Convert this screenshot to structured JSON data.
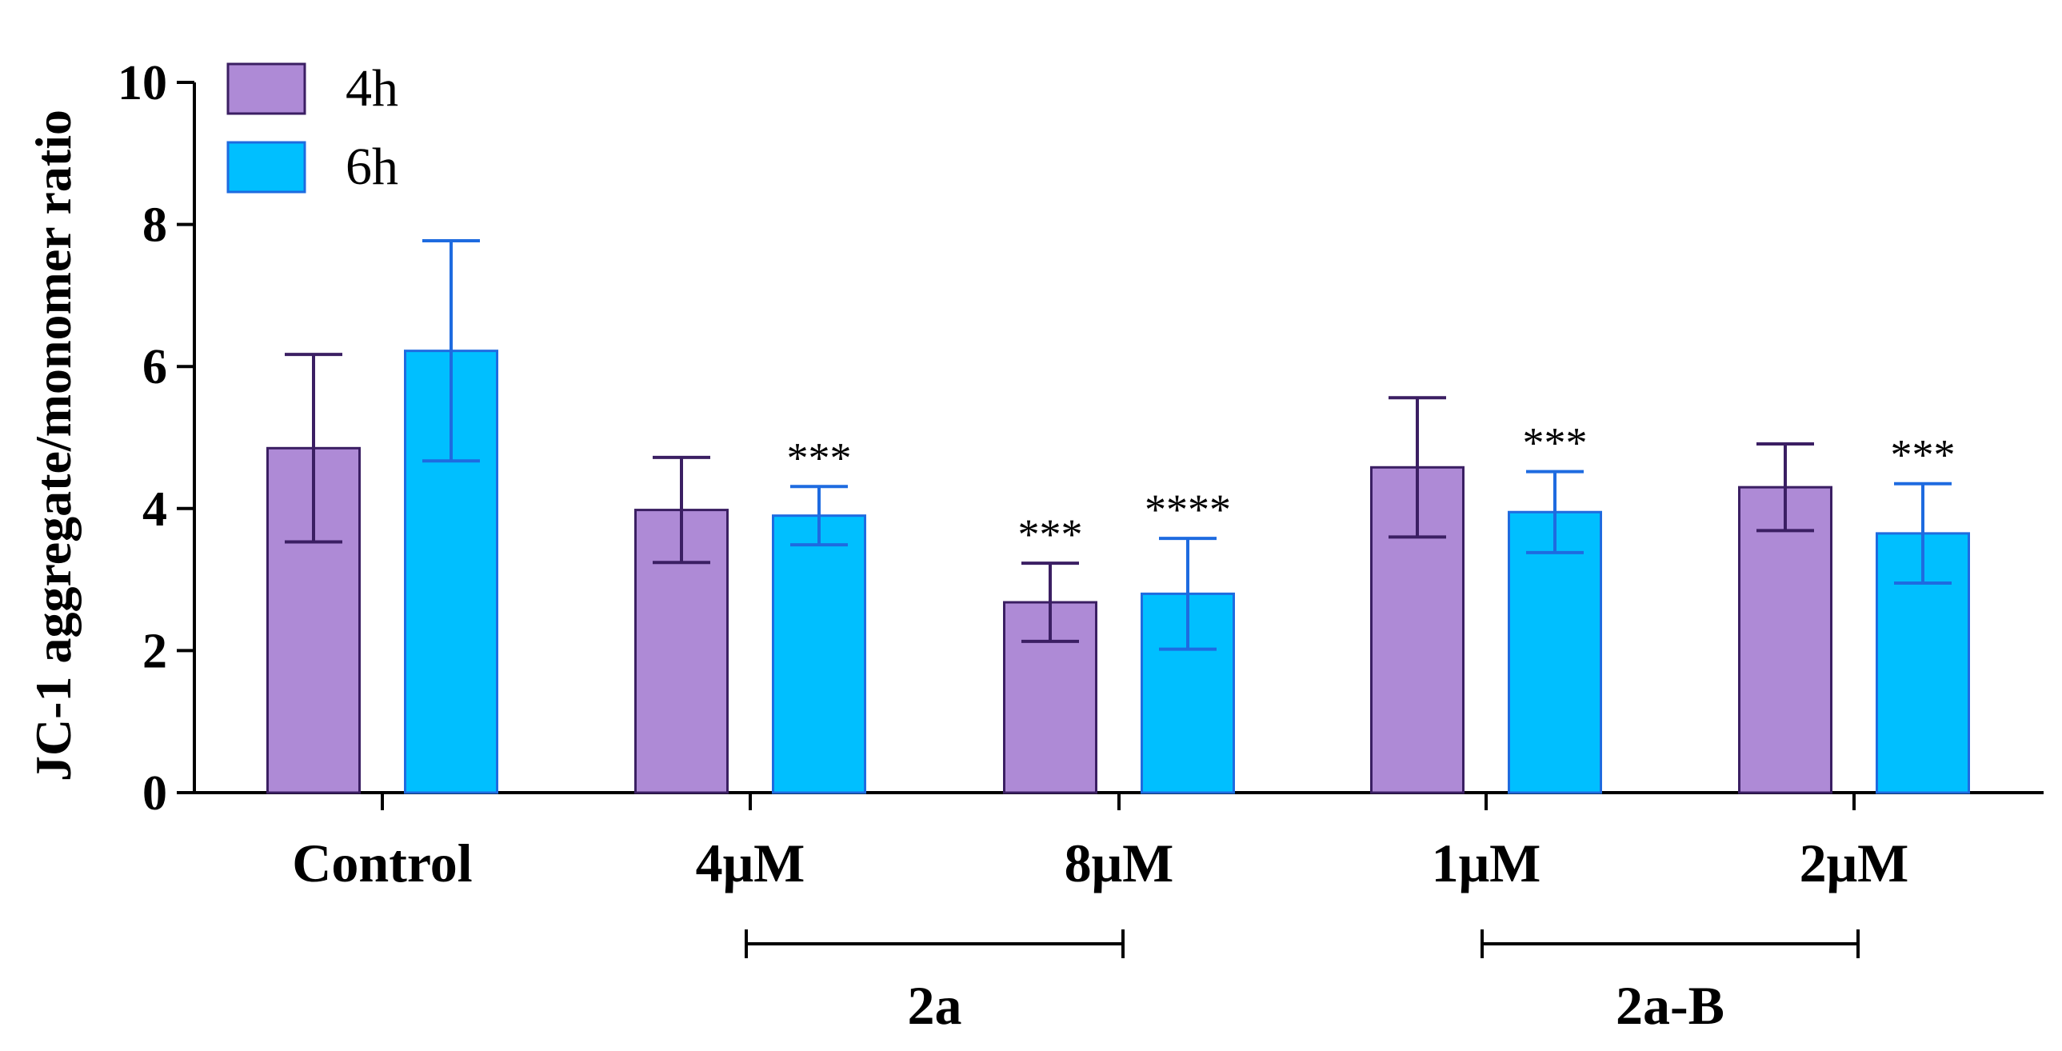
{
  "chart_data": {
    "type": "bar",
    "title": "",
    "xlabel": "",
    "ylabel": "JC-1 aggregate/monomer ratio",
    "ylim": [
      0,
      10
    ],
    "yticks": [
      0,
      2,
      4,
      6,
      8,
      10
    ],
    "grid": false,
    "legend_position": "top-left",
    "categories": [
      "Control",
      "4μM",
      "8μM",
      "1μM",
      "2μM"
    ],
    "series": [
      {
        "name": "4h",
        "color": "#ae8ad6",
        "edge_color": "#3b1f63",
        "values": [
          4.85,
          3.98,
          2.68,
          4.58,
          4.3
        ],
        "errors": [
          1.32,
          0.74,
          0.55,
          0.98,
          0.61
        ],
        "significance": [
          "",
          "",
          "***",
          "",
          ""
        ]
      },
      {
        "name": "6h",
        "color": "#00bfff",
        "edge_color": "#1e6be0",
        "values": [
          6.22,
          3.9,
          2.8,
          3.95,
          3.65
        ],
        "errors": [
          1.55,
          0.41,
          0.78,
          0.57,
          0.7
        ],
        "significance": [
          "",
          "***",
          "****",
          "***",
          "***"
        ]
      }
    ],
    "groups": [
      {
        "label": "2a",
        "from": 1,
        "to": 2
      },
      {
        "label": "2a-B",
        "from": 3,
        "to": 4
      }
    ]
  }
}
